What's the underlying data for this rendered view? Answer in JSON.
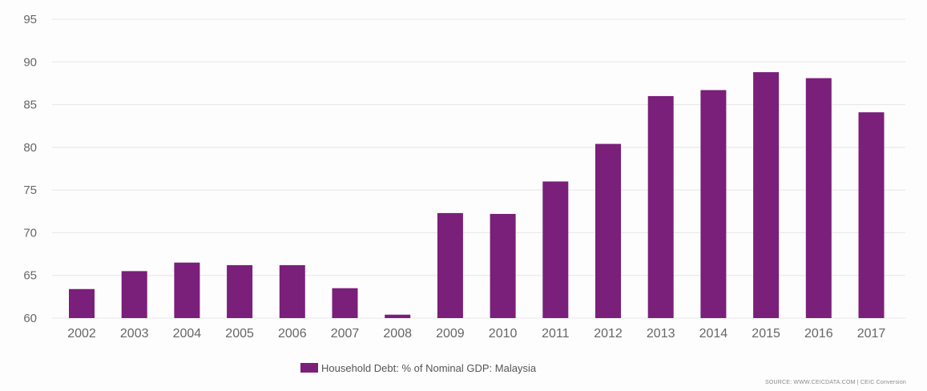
{
  "colors": {
    "bar": "#7a1f7a",
    "grid": "#e6e6e6",
    "background": "#ffffff"
  },
  "chart_data": {
    "type": "bar",
    "categories": [
      "2002",
      "2003",
      "2004",
      "2005",
      "2006",
      "2007",
      "2008",
      "2009",
      "2010",
      "2011",
      "2012",
      "2013",
      "2014",
      "2015",
      "2016",
      "2017"
    ],
    "series": [
      {
        "name": "Household Debt: % of Nominal GDP: Malaysia",
        "values": [
          63.4,
          65.5,
          66.5,
          66.2,
          66.2,
          63.5,
          60.4,
          72.3,
          72.2,
          76.0,
          80.4,
          86.0,
          86.7,
          88.8,
          88.1,
          84.1
        ]
      }
    ],
    "ylim": [
      60,
      95
    ],
    "yticks": [
      60,
      65,
      70,
      75,
      80,
      85,
      90,
      95
    ],
    "grid": true,
    "legend_position": "bottom-center",
    "title": "",
    "xlabel": "",
    "ylabel": ""
  },
  "legend": {
    "label": "Household Debt: % of Nominal GDP: Malaysia"
  },
  "source": "SOURCE: WWW.CEICDATA.COM | CEIC Conversion"
}
